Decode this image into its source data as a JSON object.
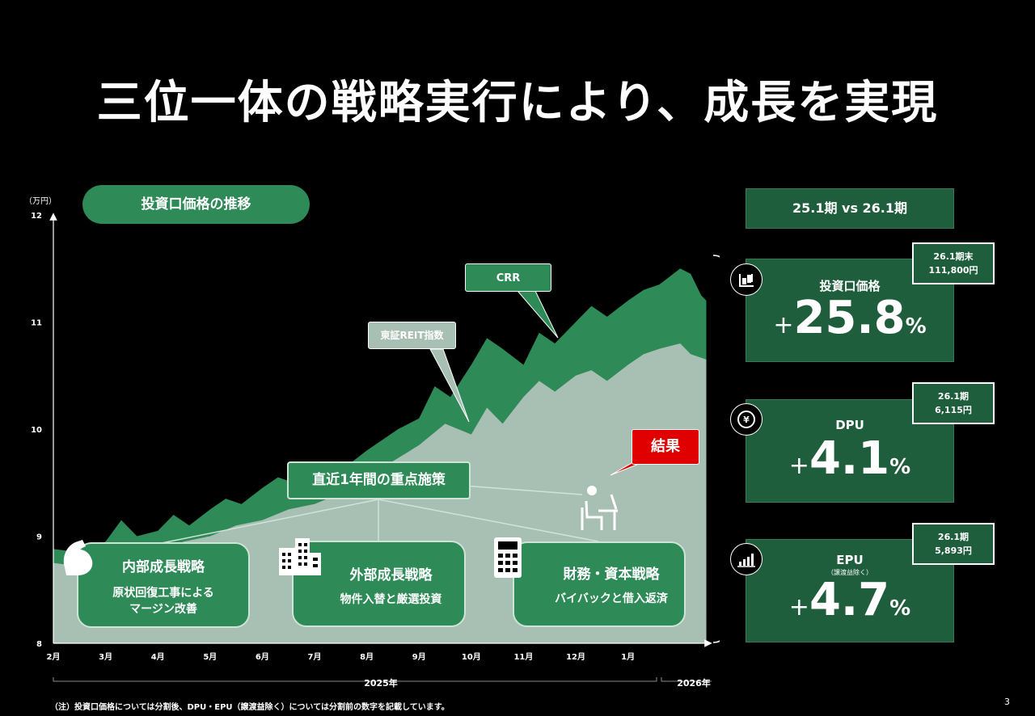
{
  "title": "三位一体の戦略実行により、成長を実現",
  "page_number": "3",
  "footnote": "（注）投資口価格については分割後、DPU・EPU（譲渡益除く）については分割前の数字を記載しています。",
  "colors": {
    "bg": "#000000",
    "crr_green": "#2e8b57",
    "reit_fill": "#a8bfb3",
    "card_green": "#1f5e3c",
    "result_red": "#e00000"
  },
  "chart_data": {
    "type": "area",
    "title": "投資口価格の推移",
    "yunit": "（万円）",
    "ylim": [
      8,
      12
    ],
    "yticks": [
      "8",
      "9",
      "10",
      "11",
      "12"
    ],
    "xticks": [
      "2月",
      "3月",
      "4月",
      "5月",
      "6月",
      "7月",
      "8月",
      "9月",
      "10月",
      "11月",
      "12月",
      "1月"
    ],
    "year_labels": [
      "2025年",
      "2026年"
    ],
    "series": [
      {
        "name": "CRR",
        "color": "#2e8b57",
        "points": [
          [
            0,
            8.88
          ],
          [
            0.5,
            8.85
          ],
          [
            1,
            8.95
          ],
          [
            1.3,
            9.15
          ],
          [
            1.6,
            9.0
          ],
          [
            2,
            9.05
          ],
          [
            2.3,
            9.2
          ],
          [
            2.6,
            9.1
          ],
          [
            3,
            9.25
          ],
          [
            3.3,
            9.35
          ],
          [
            3.6,
            9.3
          ],
          [
            4,
            9.45
          ],
          [
            4.3,
            9.55
          ],
          [
            4.6,
            9.5
          ],
          [
            5,
            9.6
          ],
          [
            5.3,
            9.7
          ],
          [
            5.6,
            9.65
          ],
          [
            6,
            9.8
          ],
          [
            6.3,
            9.9
          ],
          [
            6.6,
            10.0
          ],
          [
            7,
            10.1
          ],
          [
            7.3,
            10.4
          ],
          [
            7.6,
            10.3
          ],
          [
            8,
            10.6
          ],
          [
            8.3,
            10.85
          ],
          [
            8.6,
            10.75
          ],
          [
            9,
            10.6
          ],
          [
            9.3,
            10.9
          ],
          [
            9.6,
            10.8
          ],
          [
            10,
            11.0
          ],
          [
            10.3,
            11.15
          ],
          [
            10.6,
            11.05
          ],
          [
            11,
            11.2
          ],
          [
            11.3,
            11.3
          ],
          [
            11.6,
            11.35
          ],
          [
            12,
            11.5
          ],
          [
            12.2,
            11.45
          ],
          [
            12.4,
            11.25
          ],
          [
            12.5,
            11.2
          ]
        ]
      },
      {
        "name": "東証REIT指数",
        "color": "#a8bfb3",
        "points": [
          [
            0,
            8.75
          ],
          [
            0.5,
            8.72
          ],
          [
            1,
            8.8
          ],
          [
            1.5,
            8.78
          ],
          [
            2,
            8.85
          ],
          [
            2.5,
            8.95
          ],
          [
            3,
            9.0
          ],
          [
            3.5,
            9.1
          ],
          [
            4,
            9.15
          ],
          [
            4.5,
            9.25
          ],
          [
            5,
            9.3
          ],
          [
            5.5,
            9.4
          ],
          [
            6,
            9.55
          ],
          [
            6.5,
            9.7
          ],
          [
            7,
            9.85
          ],
          [
            7.5,
            10.05
          ],
          [
            8,
            9.95
          ],
          [
            8.3,
            10.2
          ],
          [
            8.6,
            10.05
          ],
          [
            9,
            10.3
          ],
          [
            9.3,
            10.45
          ],
          [
            9.6,
            10.35
          ],
          [
            10,
            10.5
          ],
          [
            10.3,
            10.55
          ],
          [
            10.6,
            10.45
          ],
          [
            11,
            10.6
          ],
          [
            11.3,
            10.7
          ],
          [
            11.6,
            10.75
          ],
          [
            12,
            10.8
          ],
          [
            12.2,
            10.7
          ],
          [
            12.5,
            10.65
          ]
        ]
      }
    ]
  },
  "callouts": {
    "crr": "CRR",
    "reit": "東証REIT指数",
    "focus": "直近1年間の重点施策",
    "result": "結果"
  },
  "strategies": [
    {
      "heading": "内部成長戦略",
      "line1": "原状回復工事による",
      "line2": "マージン改善",
      "icon": "muscle-arm-icon"
    },
    {
      "heading": "外部成長戦略",
      "line1": "物件入替と厳選投資",
      "line2": "",
      "icon": "buildings-icon"
    },
    {
      "heading": "財務・資本戦略",
      "line1": "バイバックと借入返済",
      "line2": "",
      "icon": "calculator-icon"
    }
  ],
  "comparison": {
    "header": "25.1期 vs 26.1期",
    "cards": [
      {
        "label": "投資口価格",
        "sub": "",
        "sign": "+",
        "value": "25.8",
        "pct": "%",
        "tag_line1": "26.1期末",
        "tag_line2": "111,800円",
        "icon": "chart-candles-icon"
      },
      {
        "label": "DPU",
        "sub": "",
        "sign": "+",
        "value": "4.1",
        "pct": "%",
        "tag_line1": "26.1期",
        "tag_line2": "6,115円",
        "icon": "yen-coin-icon"
      },
      {
        "label": "EPU",
        "sub": "（譲渡益除く）",
        "sign": "+",
        "value": "4.7",
        "pct": "%",
        "tag_line1": "26.1期",
        "tag_line2": "5,893円",
        "icon": "growth-bars-icon"
      }
    ]
  }
}
